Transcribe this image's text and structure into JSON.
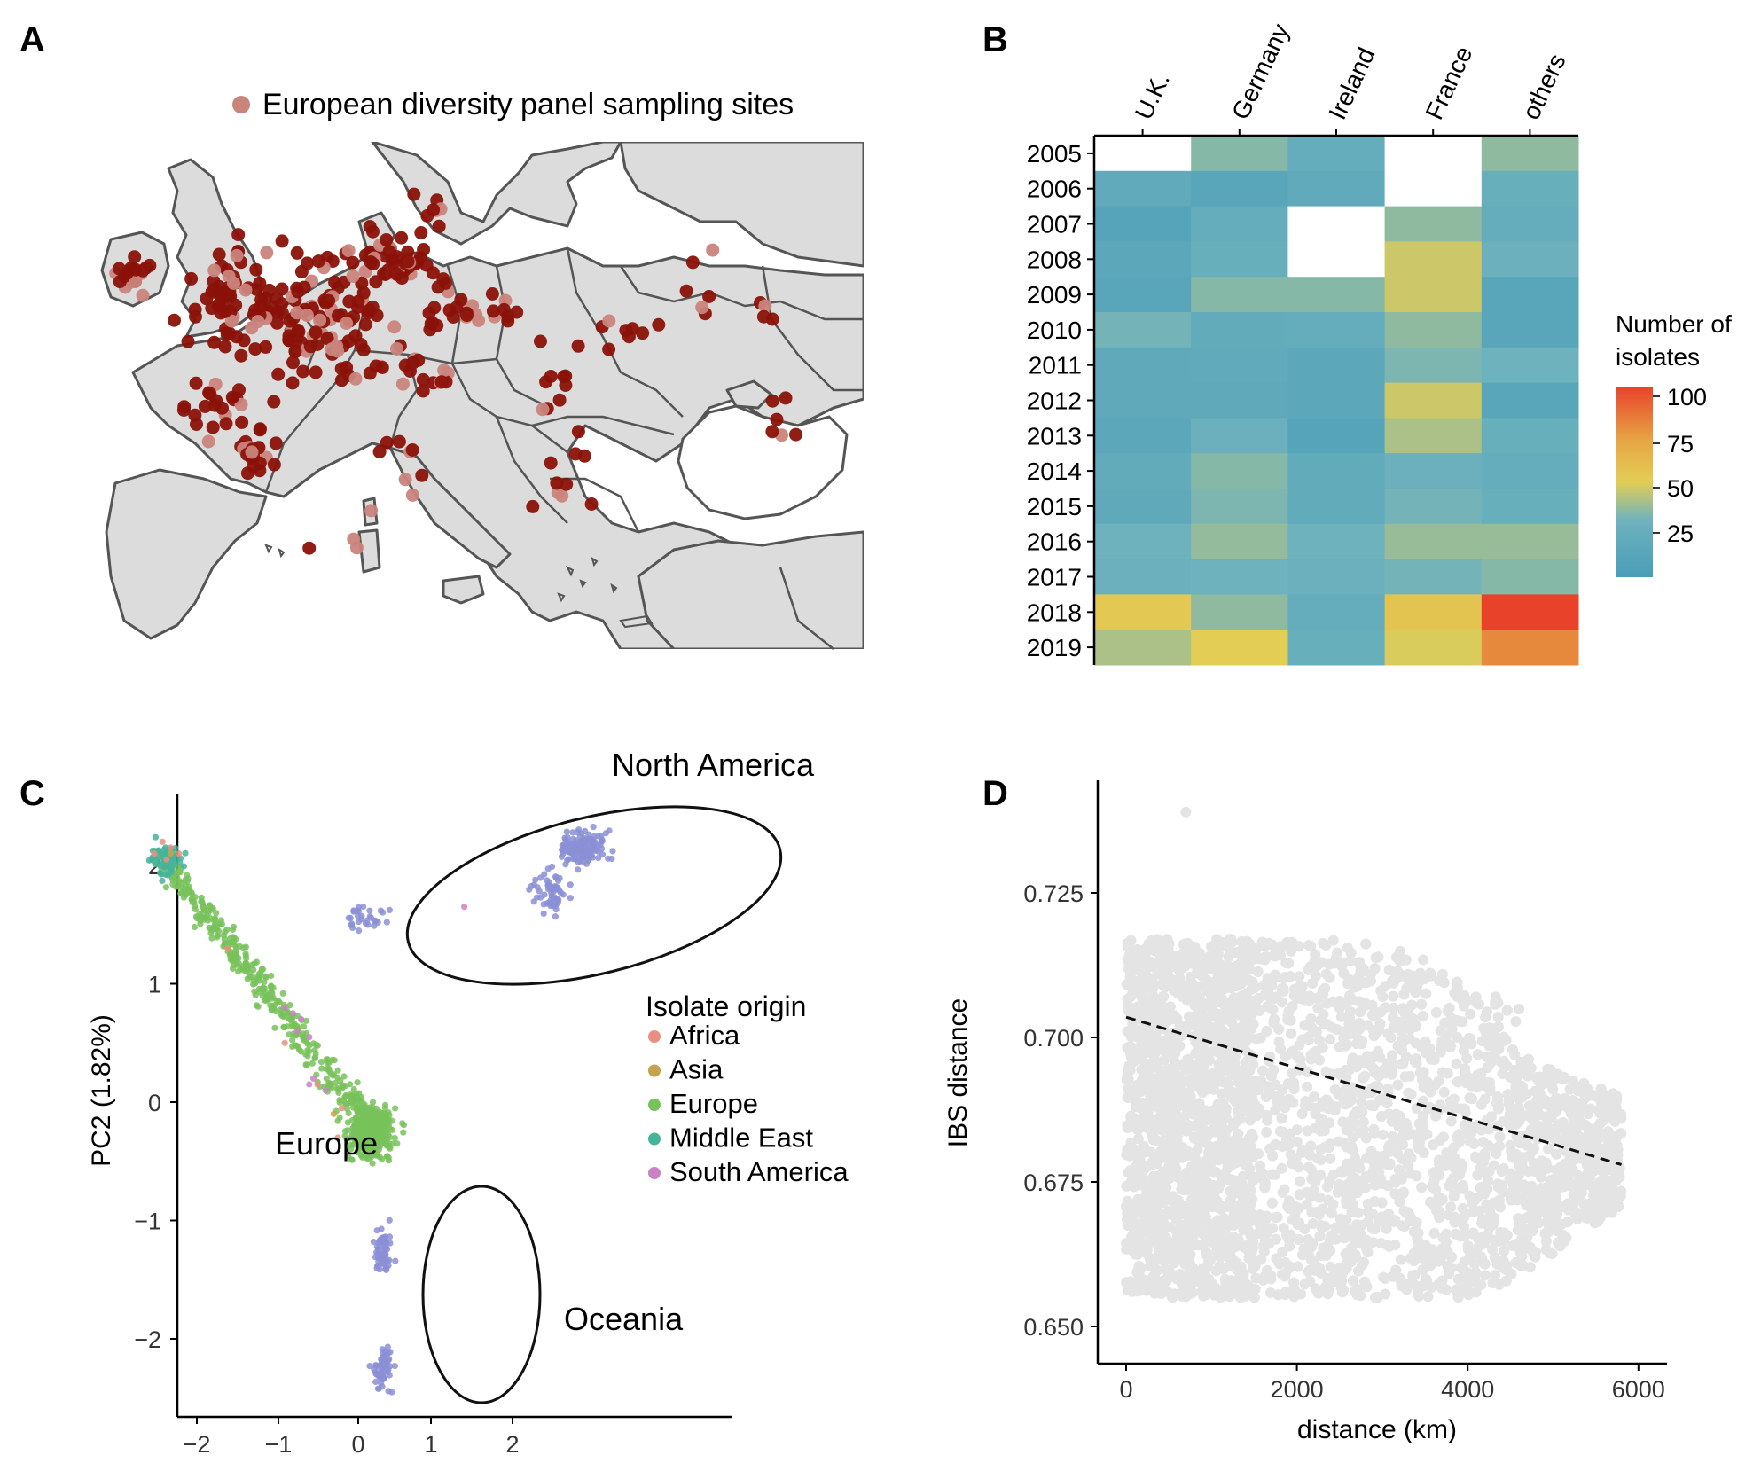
{
  "colors": {
    "site_dark": "#8b1208",
    "site_light": "#c9847c",
    "land": "#dcdcdc",
    "border": "#555555",
    "heat_low": "#4a9db8",
    "heat_mid": "#e3cd55",
    "heat_high": "#e8422b",
    "missing": "#ffffff",
    "africa": "#e8907f",
    "asia": "#c7a24d",
    "europe": "#78c25a",
    "middle_east": "#45b49a",
    "south_america": "#c983c4",
    "north_america": "#8b8fd6",
    "ibs_points": "#e4e4e4"
  },
  "panels": {
    "a": {
      "letter": "A",
      "legend": "European diversity panel sampling sites"
    },
    "b": {
      "letter": "B",
      "colorbar_title_line1": "Number of",
      "colorbar_title_line2": "isolates",
      "colorbar_ticks": [
        "100",
        "75",
        "50",
        "25"
      ]
    },
    "c": {
      "letter": "C",
      "ylabel": "PC2 (1.82%)",
      "legend_title": "Isolate origin",
      "cluster_labels": {
        "north_america": "North America",
        "europe": "Europe",
        "oceania": "Oceania"
      }
    },
    "d": {
      "letter": "D",
      "ylabel": "IBS distance",
      "xlabel": "distance (km)"
    }
  },
  "chart_data": [
    {
      "panel": "A",
      "type": "scatter",
      "description_legend": "European diversity panel sampling sites",
      "note": "map of Europe with sampling points"
    },
    {
      "panel": "B",
      "type": "heatmap",
      "x": [
        "U.K.",
        "Germany",
        "Ireland",
        "France",
        "others"
      ],
      "y": [
        "2005",
        "2006",
        "2007",
        "2008",
        "2009",
        "2010",
        "2011",
        "2012",
        "2013",
        "2014",
        "2015",
        "2016",
        "2017",
        "2018",
        "2019"
      ],
      "values": [
        [
          null,
          30,
          18,
          null,
          32
        ],
        [
          15,
          10,
          15,
          null,
          20
        ],
        [
          8,
          18,
          null,
          32,
          18
        ],
        [
          12,
          20,
          null,
          45,
          22
        ],
        [
          10,
          30,
          30,
          45,
          10
        ],
        [
          26,
          16,
          18,
          32,
          10
        ],
        [
          14,
          15,
          12,
          28,
          24
        ],
        [
          14,
          14,
          12,
          45,
          10
        ],
        [
          12,
          22,
          8,
          38,
          20
        ],
        [
          16,
          30,
          16,
          22,
          18
        ],
        [
          14,
          28,
          16,
          26,
          20
        ],
        [
          24,
          33,
          24,
          34,
          34
        ],
        [
          22,
          24,
          22,
          26,
          30
        ],
        [
          52,
          32,
          18,
          55,
          100
        ],
        [
          38,
          50,
          20,
          48,
          80
        ]
      ],
      "zlim": [
        0,
        100
      ],
      "legend_title": "Number of isolates"
    },
    {
      "panel": "C",
      "type": "scatter",
      "ylabel": "PC2 (1.82%)",
      "xticks": [
        "−2",
        "−1",
        "0",
        "1",
        "2"
      ],
      "yticks": [
        "2",
        "1",
        "0",
        "−1",
        "−2"
      ],
      "xlim": [
        -2.6,
        3.3
      ],
      "ylim": [
        -2.6,
        2.4
      ],
      "legend_title": "Isolate origin",
      "series": [
        {
          "name": "Africa",
          "color_key": "africa",
          "points": [
            [
              -2.4,
              2.2
            ],
            [
              -2.3,
              2.15
            ],
            [
              -2.2,
              2.1
            ],
            [
              -2.35,
              2.05
            ],
            [
              -2.5,
              2.1
            ],
            [
              -0.9,
              0.5
            ],
            [
              -0.2,
              -0.05
            ],
            [
              -0.5,
              0.15
            ],
            [
              -1.6,
              1.3
            ],
            [
              -0.25,
              -0.3
            ]
          ]
        },
        {
          "name": "Asia",
          "color_key": "asia",
          "points": [
            [
              -2.3,
              2.1
            ],
            [
              -0.3,
              -0.1
            ]
          ]
        },
        {
          "name": "Europe",
          "color_key": "europe",
          "points": "cluster"
        },
        {
          "name": "Middle East",
          "color_key": "middle_east",
          "points": "cluster"
        },
        {
          "name": "South America",
          "color_key": "south_america",
          "points": [
            [
              -0.8,
              0.75
            ],
            [
              -0.7,
              0.7
            ],
            [
              -0.75,
              0.6
            ],
            [
              -0.9,
              0.8
            ],
            [
              -0.6,
              0.55
            ],
            [
              -0.55,
              0.2
            ],
            [
              -0.6,
              0.15
            ],
            [
              1.3,
              1.65
            ],
            [
              -0.4,
              0.1
            ]
          ]
        }
      ],
      "clusters": [
        "North America",
        "Europe",
        "Oceania"
      ]
    },
    {
      "panel": "D",
      "type": "scatter",
      "xlabel": "distance (km)",
      "ylabel": "IBS distance",
      "xticks": [
        0,
        2000,
        4000,
        6000
      ],
      "yticks": [
        0.65,
        0.675,
        0.7,
        0.725
      ],
      "xlim": [
        -300,
        6200
      ],
      "ylim": [
        0.645,
        0.74
      ],
      "trend_line": {
        "x": [
          0,
          5800
        ],
        "y": [
          0.7035,
          0.678
        ]
      },
      "outlier": [
        700,
        0.739
      ]
    }
  ]
}
